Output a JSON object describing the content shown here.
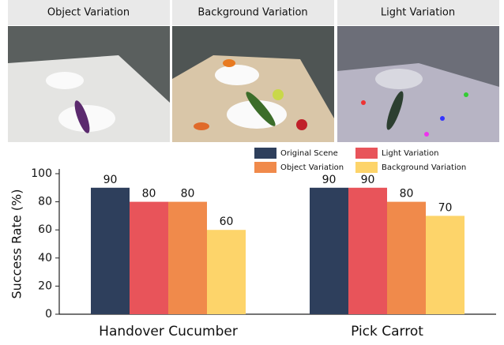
{
  "panels": [
    {
      "caption": "Object Variation"
    },
    {
      "caption": "Background Variation"
    },
    {
      "caption": "Light Variation"
    }
  ],
  "chart_data": {
    "type": "bar",
    "categories": [
      "Handover Cucumber",
      "Pick Carrot"
    ],
    "series": [
      {
        "name": "Original Scene",
        "color": "#2e3f5c",
        "values": [
          90,
          90
        ]
      },
      {
        "name": "Light Variation",
        "color": "#e8545a",
        "values": [
          80,
          90
        ]
      },
      {
        "name": "Object Variation",
        "color": "#f08a4b",
        "values": [
          80,
          80
        ]
      },
      {
        "name": "Background Variation",
        "color": "#fdd46a",
        "values": [
          60,
          70
        ]
      }
    ],
    "ylabel": "Success Rate (%)",
    "ylim": [
      0,
      100
    ],
    "yticks": [
      0,
      20,
      40,
      60,
      80,
      100
    ]
  }
}
